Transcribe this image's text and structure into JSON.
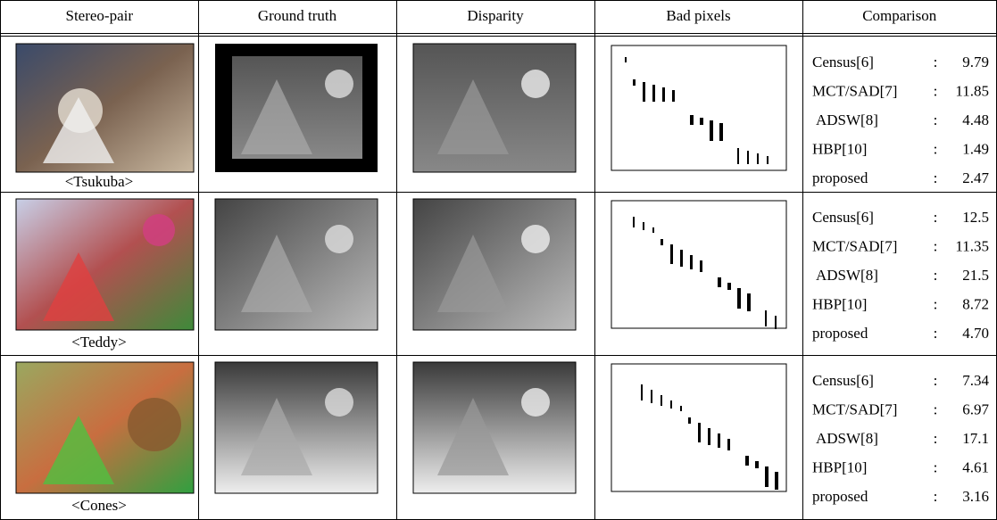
{
  "table": {
    "header": [
      "Stereo-pair",
      "Ground truth",
      "Disparity",
      "Bad pixels",
      "Comparison"
    ],
    "rows": [
      {
        "caption": "<Tsukuba>",
        "comparison": [
          {
            "method": "Census[6]",
            "value": "9.79"
          },
          {
            "method": "MCT/SAD[7]",
            "value": "11.85"
          },
          {
            "method": "ADSW[8]",
            "value": "4.48"
          },
          {
            "method": "HBP[10]",
            "value": "1.49"
          },
          {
            "method": "proposed",
            "value": "2.47"
          }
        ]
      },
      {
        "caption": "<Teddy>",
        "comparison": [
          {
            "method": "Census[6]",
            "value": "12.5"
          },
          {
            "method": "MCT/SAD[7]",
            "value": "11.35"
          },
          {
            "method": "ADSW[8]",
            "value": "21.5"
          },
          {
            "method": "HBP[10]",
            "value": "8.72"
          },
          {
            "method": "proposed",
            "value": "4.70"
          }
        ]
      },
      {
        "caption": "<Cones>",
        "comparison": [
          {
            "method": "Census[6]",
            "value": "7.34"
          },
          {
            "method": "MCT/SAD[7]",
            "value": "6.97"
          },
          {
            "method": "ADSW[8]",
            "value": "17.1"
          },
          {
            "method": "HBP[10]",
            "value": "4.61"
          },
          {
            "method": "proposed",
            "value": "3.16"
          }
        ]
      }
    ]
  }
}
